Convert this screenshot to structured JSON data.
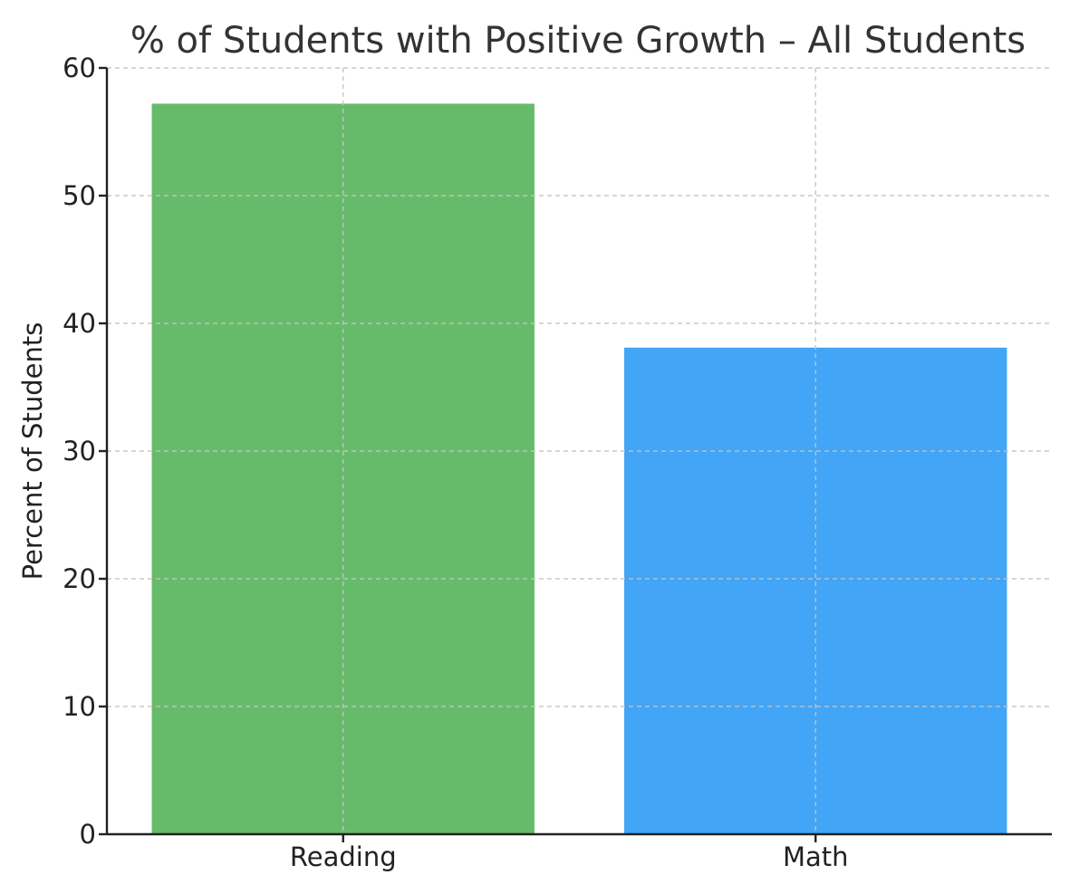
{
  "chart_data": {
    "type": "bar",
    "title": "% of Students with Positive Growth – All Students",
    "xlabel": "",
    "ylabel": "Percent of Students",
    "categories": [
      "Reading",
      "Math"
    ],
    "values": [
      57.2,
      38.1
    ],
    "colors": [
      "#66bb6a",
      "#42a5f5"
    ],
    "ylim": [
      0,
      60
    ],
    "yticks": [
      0,
      10,
      20,
      30,
      40,
      50,
      60
    ],
    "grid": true,
    "legend": "none"
  }
}
